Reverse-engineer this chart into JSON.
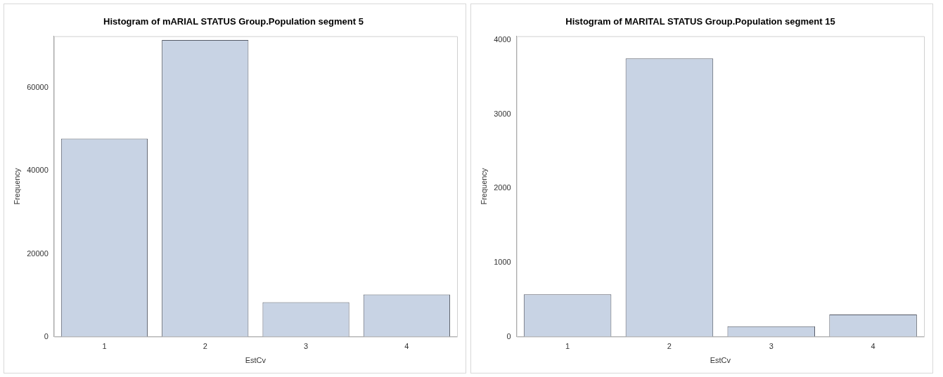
{
  "chart_data": [
    {
      "type": "bar",
      "title": "Histogram of mARIAL STATUS Group.Population segment 5",
      "xlabel": "EstCv",
      "ylabel": "Frequency",
      "categories": [
        "1",
        "2",
        "3",
        "4"
      ],
      "values": [
        47800,
        71600,
        8300,
        10200
      ],
      "color": "#c8d3e4",
      "ylim": [
        0,
        72500
      ],
      "yticks": [
        0,
        20000,
        40000,
        60000
      ],
      "grid": false,
      "legend": false
    },
    {
      "type": "bar",
      "title": "Histogram of MARITAL STATUS Group.Population segment 15",
      "xlabel": "EstCv",
      "ylabel": "Frequency",
      "categories": [
        "1",
        "2",
        "3",
        "4"
      ],
      "values": [
        570,
        3750,
        140,
        300
      ],
      "color": "#c8d3e4",
      "ylim": [
        0,
        4050
      ],
      "yticks": [
        0,
        1000,
        2000,
        3000,
        4000
      ],
      "grid": false,
      "legend": false
    }
  ]
}
